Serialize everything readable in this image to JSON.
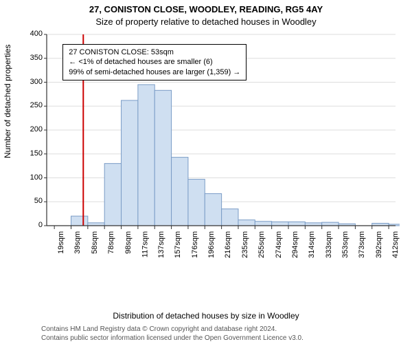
{
  "title_line1": "27, CONISTON CLOSE, WOODLEY, READING, RG5 4AY",
  "title_line2": "Size of property relative to detached houses in Woodley",
  "title_fontsize": 13,
  "subtitle_fontsize": 13,
  "ylabel": "Number of detached properties",
  "xlabel": "Distribution of detached houses by size in Woodley",
  "axis_label_fontsize": 12,
  "tick_fontsize": 11,
  "footer_line1": "Contains HM Land Registry data © Crown copyright and database right 2024.",
  "footer_line2": "Contains public sector information licensed under the Open Government Licence v3.0.",
  "footer_fontsize": 10,
  "info_box": {
    "line1": "27 CONISTON CLOSE: 53sqm",
    "line2": "← <1% of detached houses are smaller (6)",
    "line3": "99% of semi-detached houses are larger (1,359) →",
    "fontsize": 11
  },
  "chart": {
    "type": "histogram",
    "background_color": "#ffffff",
    "bar_fill": "#cfdff1",
    "bar_stroke": "#7a9cc6",
    "axis_color": "#333333",
    "grid_color": "#dddddd",
    "marker_line_color": "#cc0000",
    "marker_line_x": 53,
    "ylim": [
      0,
      400
    ],
    "ytick_step": 50,
    "xlim": [
      10,
      420
    ],
    "xtick_start": 19,
    "xtick_step": 19.65,
    "xtick_count": 21,
    "xtick_suffix": "sqm",
    "bar_width_units": 19.65,
    "bars_start_x": 19,
    "bars": [
      0,
      20,
      6,
      130,
      262,
      295,
      283,
      143,
      97,
      67,
      35,
      12,
      9,
      8,
      8,
      6,
      7,
      4,
      0,
      5,
      3
    ]
  }
}
